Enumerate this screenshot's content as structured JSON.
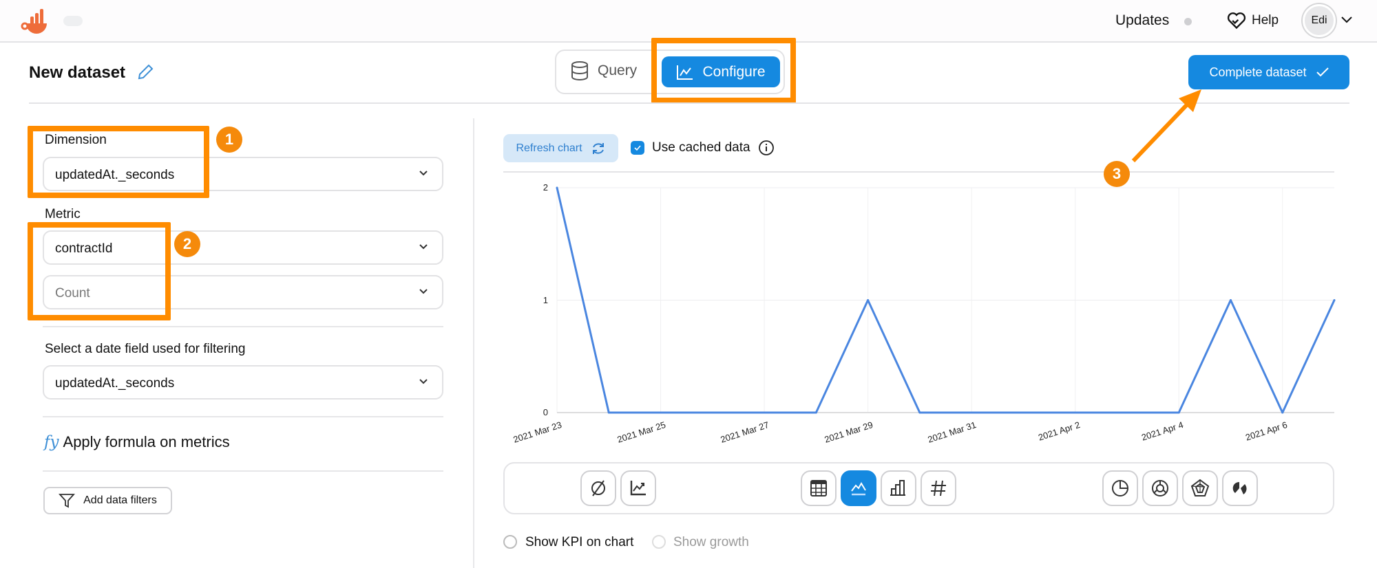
{
  "header": {
    "updates_label": "Updates",
    "help_label": "Help",
    "avatar_initials": "Edi"
  },
  "page": {
    "title": "New dataset"
  },
  "mode_toggle": {
    "query_label": "Query",
    "configure_label": "Configure",
    "active": "Configure"
  },
  "complete_button": {
    "label": "Complete dataset"
  },
  "left_panel": {
    "dimension_label": "Dimension",
    "dimension_value": "updatedAt._seconds",
    "metric_label": "Metric",
    "metric_value": "contractId",
    "metric_agg_placeholder": "Count",
    "date_filter_label": "Select a date field used for filtering",
    "date_filter_value": "updatedAt._seconds",
    "formula_label": "Apply formula on metrics",
    "formula_icon_text": "fy",
    "add_filters_label": "Add data filters"
  },
  "annotations": {
    "badges": [
      "1",
      "2",
      "3"
    ],
    "highlight_color": "#ff8c00"
  },
  "chart_toolbar": {
    "refresh_label": "Refresh chart",
    "use_cached_label": "Use cached data",
    "use_cached_checked": true,
    "types": [
      "none",
      "kpi-trend",
      "table",
      "line",
      "bar",
      "number",
      "pie",
      "doughnut",
      "radar",
      "polar"
    ],
    "active_type": "line"
  },
  "options": {
    "show_kpi_label": "Show KPI on chart",
    "show_kpi_checked": false,
    "show_growth_label": "Show growth",
    "show_growth_checked": false
  },
  "colors": {
    "accent": "#1589e0",
    "line": "#4a86e0"
  },
  "chart_data": {
    "type": "line",
    "x": [
      "2021-03-23",
      "2021-03-24",
      "2021-03-25",
      "2021-03-26",
      "2021-03-27",
      "2021-03-28",
      "2021-03-29",
      "2021-03-30",
      "2021-03-31",
      "2021-04-01",
      "2021-04-02",
      "2021-04-03",
      "2021-04-04",
      "2021-04-05",
      "2021-04-06",
      "2021-04-07"
    ],
    "values": [
      2,
      0,
      0,
      0,
      0,
      0,
      1,
      0,
      0,
      0,
      0,
      0,
      0,
      1,
      0,
      1
    ],
    "x_tick_labels": [
      "2021 Mar 23",
      "2021 Mar 25",
      "2021 Mar 27",
      "2021 Mar 29",
      "2021 Mar 31",
      "2021 Apr 2",
      "2021 Apr 4",
      "2021 Apr 6"
    ],
    "y_tick_labels": [
      "0",
      "1",
      "2"
    ],
    "ylim": [
      0,
      2
    ],
    "grid": true
  }
}
